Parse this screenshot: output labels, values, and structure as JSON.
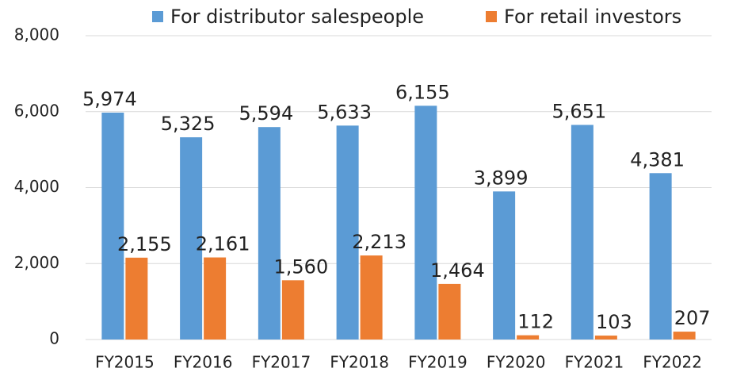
{
  "chart_data": {
    "type": "bar",
    "categories": [
      "FY2015",
      "FY2016",
      "FY2017",
      "FY2018",
      "FY2019",
      "FY2020",
      "FY2021",
      "FY2022"
    ],
    "series": [
      {
        "name": "For distributor salespeople",
        "color": "#5b9bd5",
        "values": [
          5974,
          5325,
          5594,
          5633,
          6155,
          3899,
          5651,
          4381
        ],
        "value_labels": [
          "5,974",
          "5,325",
          "5,594",
          "5,633",
          "6,155",
          "3,899",
          "5,651",
          "4,381"
        ]
      },
      {
        "name": "For retail investors",
        "color": "#ed7d31",
        "values": [
          2155,
          2161,
          1560,
          2213,
          1464,
          112,
          103,
          207
        ],
        "value_labels": [
          "2,155",
          "2,161",
          "1,560",
          "2,213",
          "1,464",
          "112",
          "103",
          "207"
        ]
      }
    ],
    "ylim": [
      0,
      8000
    ],
    "yticks": [
      0,
      {
        "value": 2000,
        "label": "2,000"
      },
      {
        "value": 4000,
        "label": "4,000"
      },
      {
        "value": 6000,
        "label": "6,000"
      },
      {
        "value": 8000,
        "label": "8,000"
      }
    ],
    "grid": true,
    "legend": "top"
  }
}
